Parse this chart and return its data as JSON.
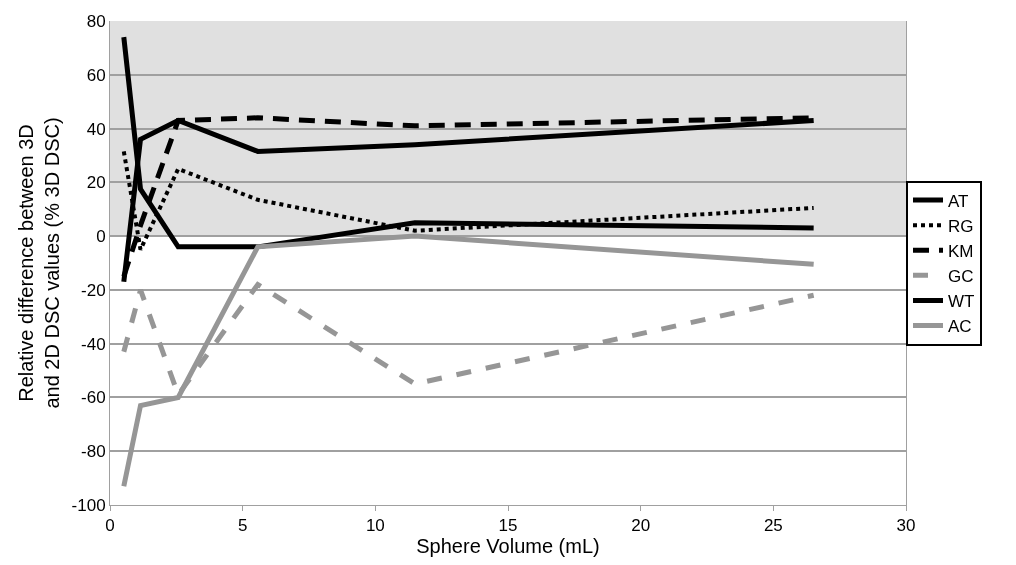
{
  "chart_data": {
    "type": "line",
    "xlabel": "Sphere Volume (mL)",
    "ylabel": "Relative difference between 3D and 2D DSC values (% 3D DSC)",
    "x": [
      0.52,
      1.15,
      2.57,
      5.57,
      11.49,
      26.52
    ],
    "series": [
      {
        "name": "AT",
        "color": "#000000",
        "line_style": "solid",
        "values": [
          -17,
          36,
          43,
          31.5,
          34,
          43
        ]
      },
      {
        "name": "RG",
        "color": "#000000",
        "line_style": "dotted",
        "values": [
          31.5,
          -5,
          25,
          13.5,
          2,
          10.5
        ]
      },
      {
        "name": "KM",
        "color": "#000000",
        "line_style": "dashed",
        "values": [
          -15,
          4,
          43,
          44,
          41,
          44
        ]
      },
      {
        "name": "GC",
        "color": "#969696",
        "line_style": "dashed",
        "values": [
          -43,
          -20,
          -59,
          -18,
          -55,
          -22
        ]
      },
      {
        "name": "WT",
        "color": "#000000",
        "line_style": "solid",
        "values": [
          74,
          17.5,
          -4,
          -4,
          5,
          3
        ]
      },
      {
        "name": "AC",
        "color": "#969696",
        "line_style": "solid",
        "values": [
          -93,
          -63,
          -60,
          -4,
          0,
          -10.5
        ]
      }
    ],
    "xlim": [
      0,
      30
    ],
    "xticks": [
      0,
      5,
      10,
      15,
      20,
      25,
      30
    ],
    "ylim": [
      -100,
      80
    ],
    "yticks": [
      -100,
      -80,
      -60,
      -40,
      -20,
      0,
      20,
      40,
      60,
      80
    ],
    "bands": [
      {
        "axis": "y",
        "from": 0,
        "to": 80,
        "color": "#e0e0e0"
      }
    ],
    "grid": "y",
    "legend": "right"
  }
}
